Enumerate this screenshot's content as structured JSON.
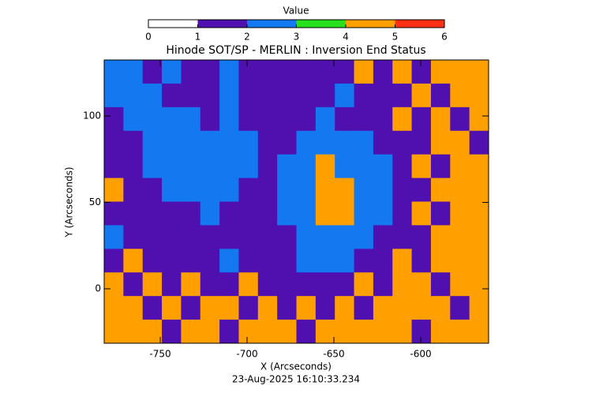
{
  "chart_data": {
    "type": "heatmap",
    "title": "Hinode SOT/SP - MERLIN : Inversion End Status",
    "x_label": "X (Arcseconds)",
    "y_label": "Y (Arcseconds)",
    "footer": "23-Aug-2025 16:10:33.234",
    "xlim": [
      -782.3,
      -560.9
    ],
    "ylim": [
      -31.5,
      132.4
    ],
    "xticks": [
      -750,
      -700,
      -650,
      -600
    ],
    "yticks": [
      0,
      50,
      100
    ],
    "colorbar": {
      "title": "Value",
      "ticks": [
        0,
        1,
        2,
        3,
        4,
        5,
        6
      ],
      "colors": [
        "#ffffff",
        "#5010b0",
        "#1478f0",
        "#28e01e",
        "#ffa000",
        "#ff3014"
      ]
    },
    "z": [
      [
        2,
        2,
        1,
        2,
        1,
        1,
        2,
        1,
        1,
        1,
        1,
        1,
        1,
        4,
        1,
        4,
        1,
        4,
        4,
        4
      ],
      [
        2,
        2,
        2,
        1,
        1,
        1,
        2,
        1,
        1,
        1,
        1,
        1,
        2,
        1,
        1,
        1,
        4,
        1,
        4,
        4
      ],
      [
        1,
        2,
        2,
        2,
        2,
        1,
        2,
        1,
        1,
        1,
        1,
        2,
        1,
        1,
        1,
        4,
        1,
        4,
        1,
        4
      ],
      [
        1,
        1,
        2,
        2,
        2,
        2,
        2,
        2,
        1,
        1,
        2,
        2,
        2,
        2,
        1,
        1,
        1,
        4,
        4,
        1
      ],
      [
        1,
        1,
        2,
        2,
        2,
        2,
        2,
        2,
        1,
        2,
        2,
        4,
        2,
        2,
        2,
        1,
        4,
        1,
        4,
        4
      ],
      [
        4,
        1,
        1,
        2,
        2,
        2,
        2,
        1,
        1,
        2,
        2,
        4,
        4,
        2,
        2,
        1,
        1,
        4,
        4,
        4
      ],
      [
        1,
        1,
        1,
        1,
        1,
        2,
        1,
        1,
        1,
        2,
        2,
        4,
        4,
        2,
        2,
        1,
        4,
        1,
        4,
        4
      ],
      [
        2,
        1,
        1,
        1,
        1,
        1,
        1,
        1,
        1,
        1,
        2,
        2,
        2,
        2,
        1,
        1,
        1,
        4,
        4,
        4
      ],
      [
        1,
        4,
        1,
        1,
        1,
        1,
        2,
        1,
        1,
        1,
        2,
        2,
        2,
        1,
        1,
        4,
        1,
        4,
        4,
        4
      ],
      [
        4,
        1,
        4,
        1,
        4,
        1,
        1,
        4,
        1,
        1,
        1,
        1,
        1,
        4,
        1,
        4,
        4,
        1,
        4,
        4
      ],
      [
        4,
        4,
        1,
        4,
        1,
        4,
        4,
        1,
        4,
        1,
        4,
        1,
        4,
        1,
        4,
        4,
        4,
        4,
        1,
        4
      ],
      [
        4,
        4,
        4,
        1,
        4,
        4,
        1,
        4,
        4,
        4,
        1,
        4,
        4,
        4,
        4,
        4,
        1,
        4,
        4,
        4
      ]
    ]
  }
}
